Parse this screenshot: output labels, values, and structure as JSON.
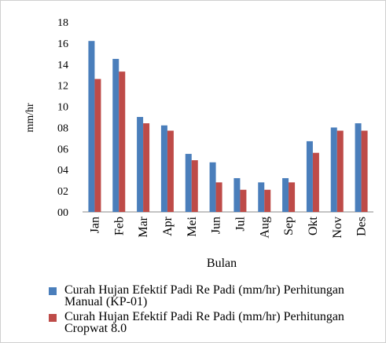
{
  "chart_data": {
    "type": "bar",
    "y_label": "mm/hr",
    "x_label": "Bulan",
    "categories": [
      "Jan",
      "Feb",
      "Mar",
      "Apr",
      "Mei",
      "Jun",
      "Jul",
      "Aug",
      "Sep",
      "Okt",
      "Nov",
      "Des"
    ],
    "series": [
      {
        "name": "Curah Hujan Efektif Padi Re Padi (mm/hr) Perhitungan Manual (KP-01)",
        "color": "#4a7ebb",
        "values": [
          16.2,
          14.5,
          9.0,
          8.2,
          5.5,
          4.7,
          3.2,
          2.8,
          3.2,
          6.7,
          8.0,
          8.4
        ]
      },
      {
        "name": "Curah Hujan Efektif Padi Re Padi (mm/hr) Perhitungan Cropwat 8.0",
        "color": "#be4b48",
        "values": [
          12.6,
          13.3,
          8.4,
          7.7,
          4.9,
          2.8,
          2.1,
          2.1,
          2.8,
          5.6,
          7.7,
          7.7
        ]
      }
    ],
    "ylim": [
      0,
      18
    ],
    "yticks": [
      {
        "value": 0,
        "label": "00"
      },
      {
        "value": 2,
        "label": "02"
      },
      {
        "value": 4,
        "label": "04"
      },
      {
        "value": 6,
        "label": "06"
      },
      {
        "value": 8,
        "label": "08"
      },
      10,
      12,
      14,
      16,
      18
    ],
    "grid": false,
    "legend": "bottom"
  }
}
